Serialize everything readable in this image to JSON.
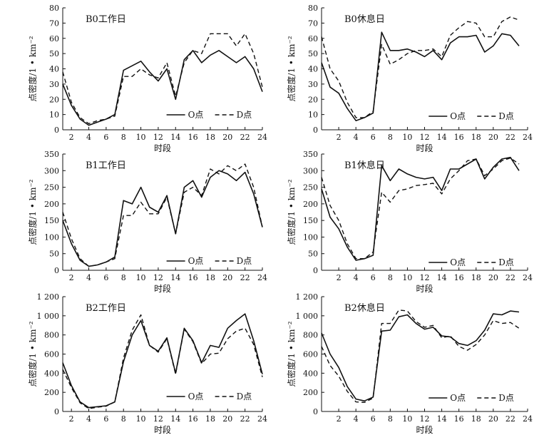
{
  "chart_data": [
    {
      "type": "line",
      "title": "B0工作日",
      "xlabel": "时段",
      "ylabel": "点密度/1 • km⁻²",
      "xlim": [
        1,
        24
      ],
      "ylim": [
        0,
        80
      ],
      "xticks": [
        2,
        4,
        6,
        8,
        10,
        12,
        14,
        16,
        18,
        20,
        22,
        24
      ],
      "yticks": [
        0,
        10,
        20,
        30,
        40,
        50,
        60,
        70,
        80
      ],
      "ytick_labels": [
        "0",
        "10",
        "20",
        "30",
        "40",
        "50",
        "60",
        "70",
        "80"
      ],
      "x": [
        1,
        2,
        3,
        4,
        5,
        6,
        7,
        8,
        9,
        10,
        11,
        12,
        13,
        14,
        15,
        16,
        17,
        18,
        19,
        20,
        21,
        22,
        23,
        24
      ],
      "series": [
        {
          "name": "O点",
          "style": "solid",
          "values": [
            30,
            16,
            7,
            3,
            5,
            7,
            10,
            39,
            42,
            45,
            38,
            32,
            40,
            20,
            46,
            52,
            44,
            49,
            52,
            48,
            44,
            48,
            40,
            25
          ]
        },
        {
          "name": "D点",
          "style": "dashed",
          "values": [
            38,
            18,
            8,
            4,
            6,
            7,
            9,
            35,
            35,
            40,
            36,
            34,
            44,
            22,
            44,
            52,
            50,
            63,
            63,
            63,
            55,
            63,
            50,
            28
          ]
        }
      ]
    },
    {
      "type": "line",
      "title": "B0休息日",
      "xlabel": "时段",
      "ylabel": "点密度/1 • km⁻²",
      "xlim": [
        0,
        24
      ],
      "ylim": [
        0,
        80
      ],
      "xticks": [
        2,
        4,
        6,
        8,
        10,
        12,
        14,
        16,
        18,
        20,
        22,
        24
      ],
      "yticks": [
        0,
        10,
        20,
        30,
        40,
        50,
        60,
        70,
        80
      ],
      "ytick_labels": [
        "0",
        "10",
        "20",
        "30",
        "40",
        "50",
        "60",
        "70",
        "80"
      ],
      "x": [
        0,
        1,
        2,
        3,
        4,
        5,
        6,
        7,
        8,
        9,
        10,
        11,
        12,
        13,
        14,
        15,
        16,
        17,
        18,
        19,
        20,
        21,
        22,
        23
      ],
      "series": [
        {
          "name": "O点",
          "style": "solid",
          "values": [
            44,
            28,
            24,
            14,
            6,
            8,
            11,
            64,
            52,
            52,
            53,
            51,
            48,
            52,
            46,
            57,
            61,
            61,
            62,
            51,
            55,
            63,
            62,
            55
          ]
        },
        {
          "name": "D点",
          "style": "dashed",
          "values": [
            61,
            40,
            32,
            18,
            8,
            8,
            12,
            56,
            43,
            46,
            50,
            52,
            52,
            53,
            48,
            62,
            67,
            71,
            70,
            61,
            61,
            71,
            74,
            72
          ]
        }
      ]
    },
    {
      "type": "line",
      "title": "B1工作日",
      "xlabel": "时段",
      "ylabel": "点密度/1 • km⁻²",
      "xlim": [
        1,
        24
      ],
      "ylim": [
        0,
        350
      ],
      "xticks": [
        2,
        4,
        6,
        8,
        10,
        12,
        14,
        16,
        18,
        20,
        22,
        24
      ],
      "yticks": [
        0,
        50,
        100,
        150,
        200,
        250,
        300,
        350
      ],
      "ytick_labels": [
        "0",
        "50",
        "100",
        "150",
        "200",
        "250",
        "300",
        "350"
      ],
      "x": [
        1,
        2,
        3,
        4,
        5,
        6,
        7,
        8,
        9,
        10,
        11,
        12,
        13,
        14,
        15,
        16,
        17,
        18,
        19,
        20,
        21,
        22,
        23,
        24
      ],
      "series": [
        {
          "name": "O点",
          "style": "solid",
          "values": [
            150,
            80,
            30,
            12,
            16,
            25,
            40,
            210,
            200,
            250,
            190,
            175,
            225,
            110,
            250,
            270,
            220,
            280,
            300,
            290,
            270,
            295,
            230,
            130
          ]
        },
        {
          "name": "D点",
          "style": "dashed",
          "values": [
            175,
            95,
            35,
            12,
            16,
            25,
            35,
            165,
            165,
            205,
            170,
            170,
            220,
            110,
            235,
            250,
            225,
            305,
            290,
            315,
            300,
            320,
            250,
            130
          ]
        }
      ]
    },
    {
      "type": "line",
      "title": "B1休息日",
      "xlabel": "时段",
      "ylabel": "点密度/1 • km⁻²",
      "xlim": [
        0,
        24
      ],
      "ylim": [
        0,
        350
      ],
      "xticks": [
        2,
        4,
        6,
        8,
        10,
        12,
        14,
        16,
        18,
        20,
        22,
        24
      ],
      "yticks": [
        0,
        50,
        100,
        150,
        200,
        250,
        300,
        350
      ],
      "ytick_labels": [
        "0",
        "50",
        "100",
        "150",
        "200",
        "250",
        "300",
        "350"
      ],
      "x": [
        0,
        1,
        2,
        3,
        4,
        5,
        6,
        7,
        8,
        9,
        10,
        11,
        12,
        13,
        14,
        15,
        16,
        17,
        18,
        19,
        20,
        21,
        22,
        23
      ],
      "series": [
        {
          "name": "O点",
          "style": "solid",
          "values": [
            245,
            160,
            125,
            70,
            30,
            35,
            45,
            315,
            270,
            305,
            290,
            280,
            275,
            280,
            240,
            305,
            305,
            320,
            335,
            275,
            310,
            335,
            340,
            300
          ]
        },
        {
          "name": "D点",
          "style": "dashed",
          "values": [
            280,
            195,
            150,
            80,
            35,
            35,
            55,
            235,
            205,
            240,
            245,
            255,
            258,
            262,
            230,
            275,
            300,
            330,
            335,
            285,
            305,
            330,
            338,
            320
          ]
        }
      ]
    },
    {
      "type": "line",
      "title": "B2工作日",
      "xlabel": "时段",
      "ylabel": "点密度/1 • km⁻²",
      "xlim": [
        1,
        24
      ],
      "ylim": [
        0,
        1200
      ],
      "xticks": [
        2,
        4,
        6,
        8,
        10,
        12,
        14,
        16,
        18,
        20,
        22,
        24
      ],
      "yticks": [
        0,
        200,
        400,
        600,
        800,
        1000,
        1200
      ],
      "ytick_labels": [
        "0",
        "200",
        "400",
        "600",
        "800",
        "1 000",
        "1 200"
      ],
      "x": [
        1,
        2,
        3,
        4,
        5,
        6,
        7,
        8,
        9,
        10,
        11,
        12,
        13,
        14,
        15,
        16,
        17,
        18,
        19,
        20,
        21,
        22,
        23,
        24
      ],
      "series": [
        {
          "name": "O点",
          "style": "solid",
          "values": [
            510,
            270,
            100,
            40,
            50,
            60,
            100,
            520,
            800,
            950,
            690,
            630,
            770,
            400,
            870,
            740,
            510,
            690,
            670,
            870,
            950,
            1020,
            740,
            390
          ]
        },
        {
          "name": "D点",
          "style": "dashed",
          "values": [
            440,
            250,
            90,
            30,
            45,
            55,
            100,
            560,
            850,
            1010,
            690,
            620,
            760,
            390,
            860,
            730,
            500,
            600,
            610,
            760,
            840,
            870,
            700,
            360
          ]
        }
      ]
    },
    {
      "type": "line",
      "title": "B2休息日",
      "xlabel": "时段",
      "ylabel": "点密度/1 • km⁻²",
      "xlim": [
        0,
        24
      ],
      "ylim": [
        0,
        1200
      ],
      "xticks": [
        2,
        4,
        6,
        8,
        10,
        12,
        14,
        16,
        18,
        20,
        22,
        24
      ],
      "yticks": [
        0,
        200,
        400,
        600,
        800,
        1000,
        1200
      ],
      "ytick_labels": [
        "0",
        "200",
        "400",
        "600",
        "800",
        "1 000",
        "1 200"
      ],
      "x": [
        0,
        1,
        2,
        3,
        4,
        5,
        6,
        7,
        8,
        9,
        10,
        11,
        12,
        13,
        14,
        15,
        16,
        17,
        18,
        19,
        20,
        21,
        22,
        23
      ],
      "series": [
        {
          "name": "O点",
          "style": "solid",
          "values": [
            820,
            600,
            460,
            260,
            130,
            110,
            150,
            840,
            850,
            990,
            1010,
            920,
            860,
            880,
            790,
            780,
            710,
            690,
            740,
            850,
            1020,
            1010,
            1050,
            1040
          ]
        },
        {
          "name": "D点",
          "style": "dashed",
          "values": [
            680,
            480,
            370,
            210,
            100,
            95,
            140,
            920,
            920,
            1060,
            1050,
            940,
            880,
            900,
            770,
            790,
            680,
            640,
            700,
            800,
            950,
            920,
            930,
            870
          ]
        }
      ]
    }
  ]
}
